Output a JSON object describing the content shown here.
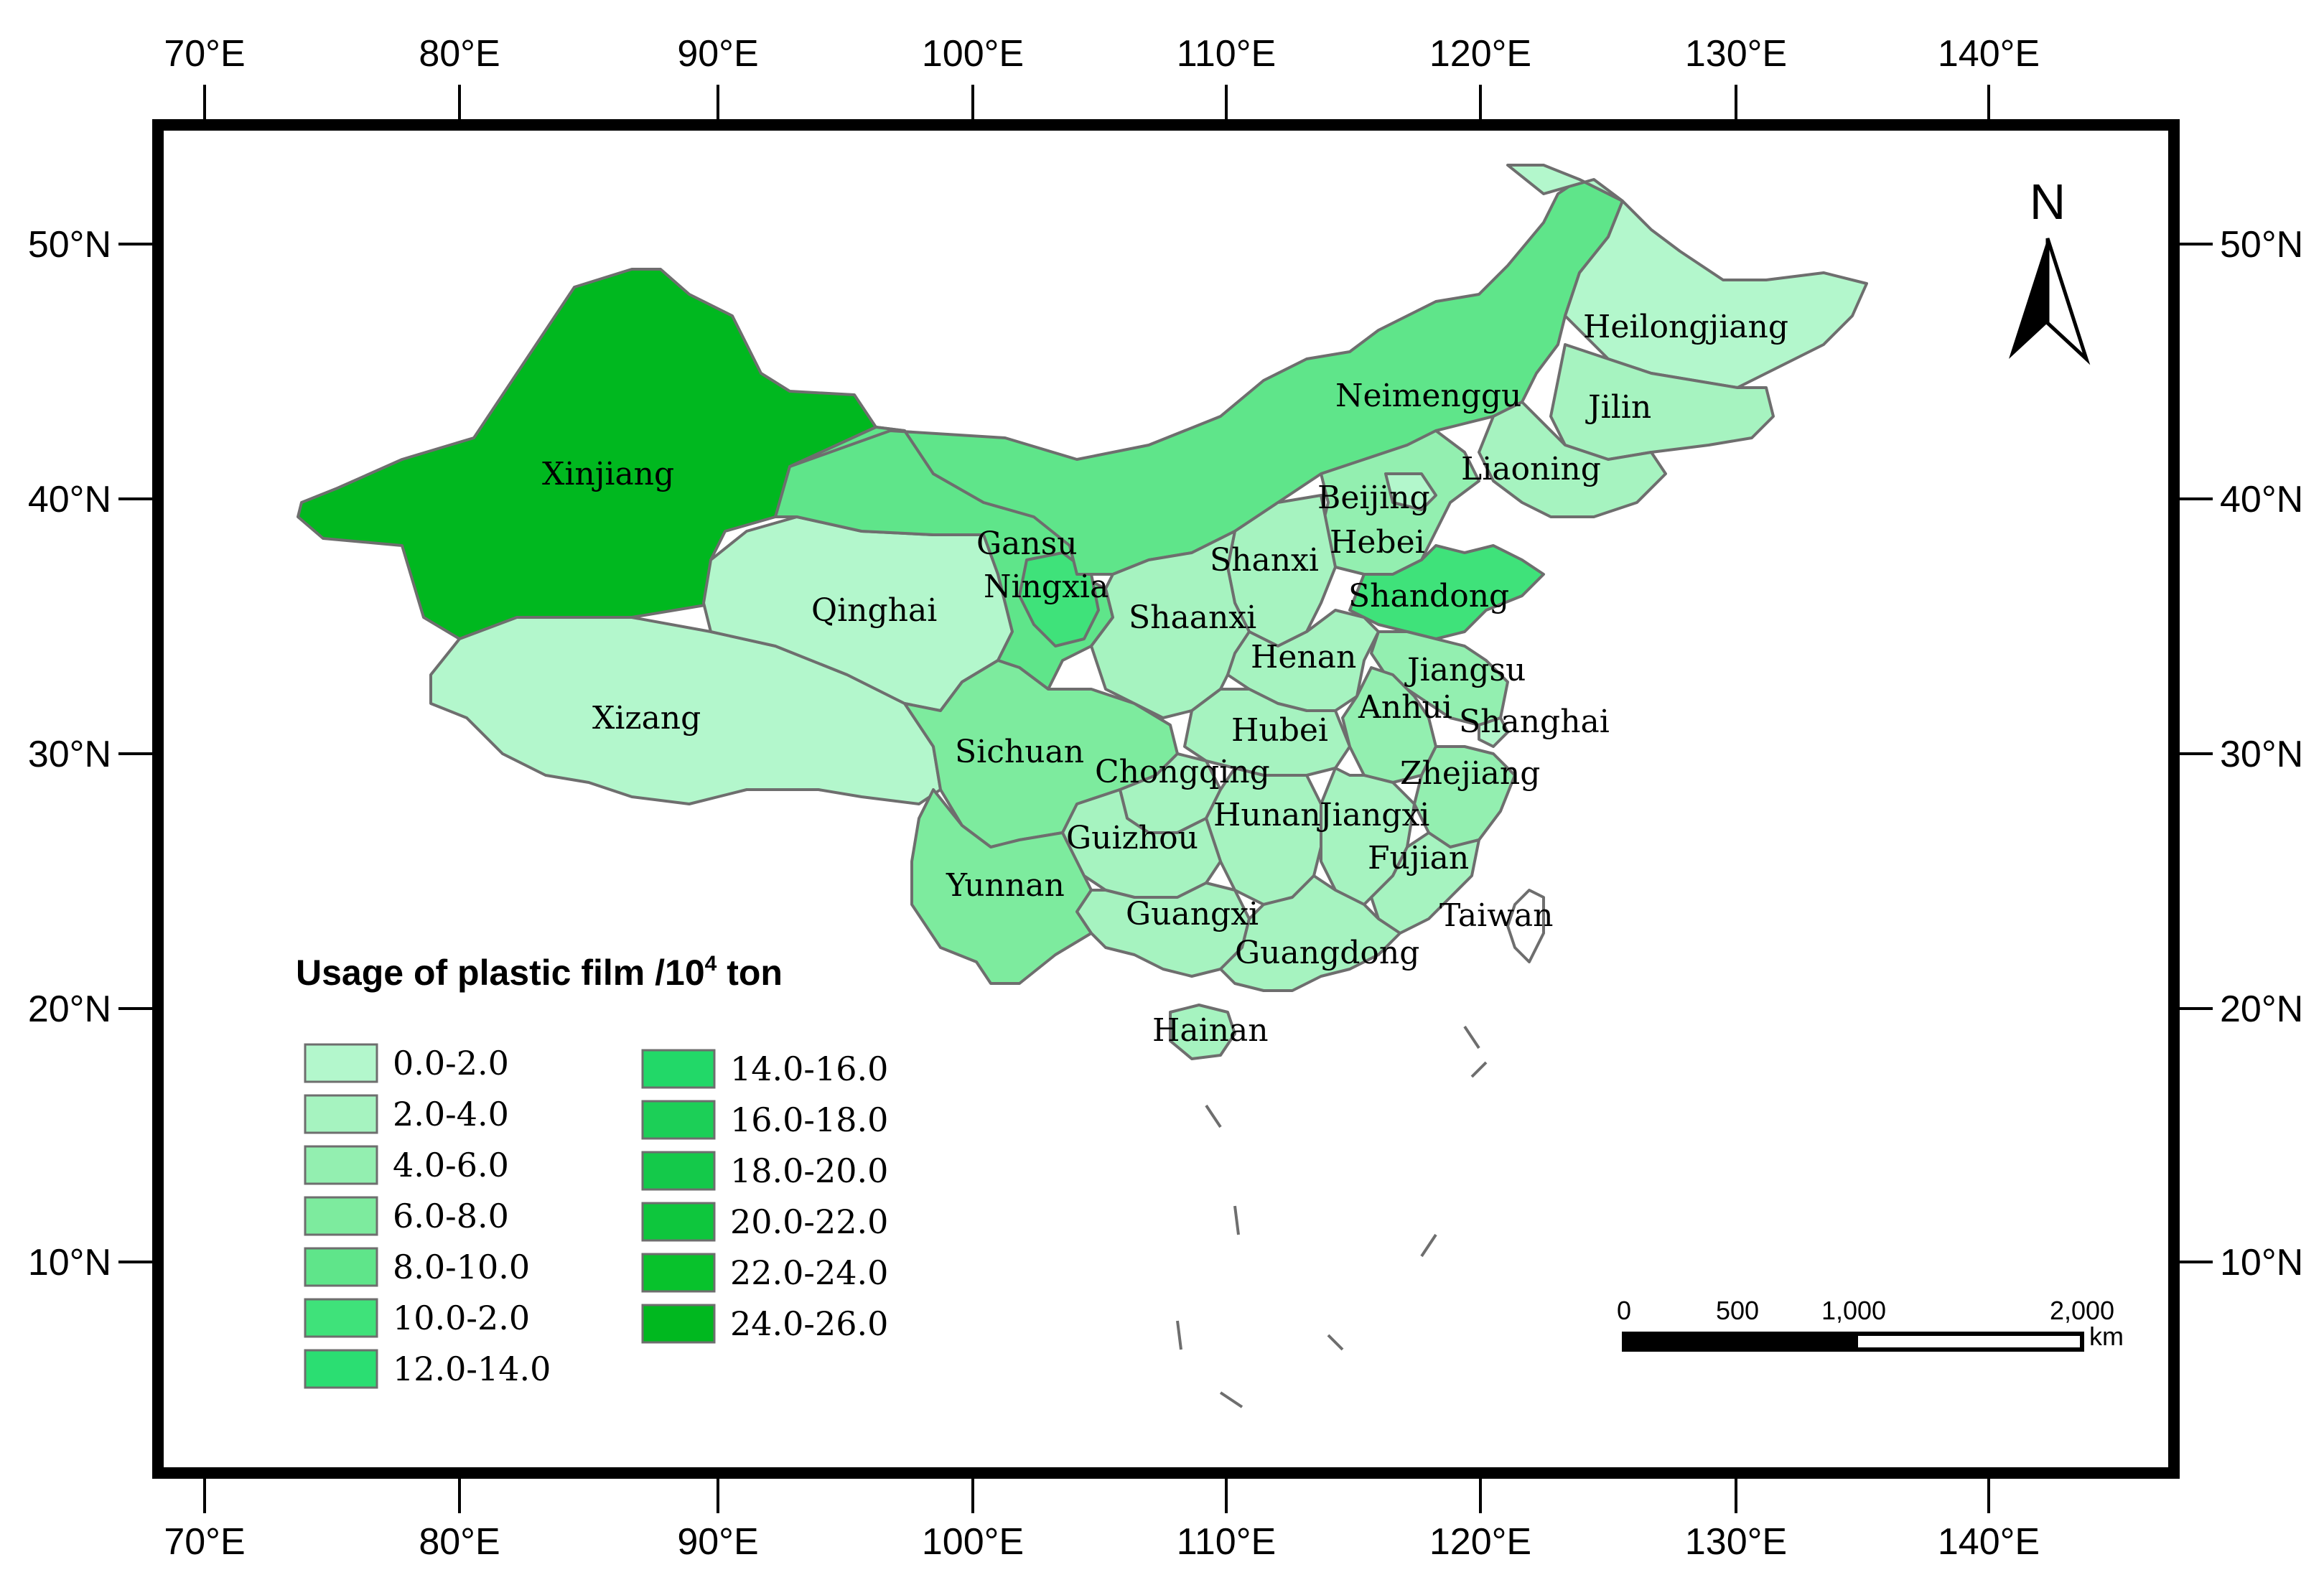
{
  "axes": {
    "lon_ticks": [
      "70°E",
      "80°E",
      "90°E",
      "100°E",
      "110°E",
      "120°E",
      "130°E",
      "140°E"
    ],
    "lat_ticks": [
      "50°N",
      "40°N",
      "30°N",
      "20°N",
      "10°N"
    ]
  },
  "legend": {
    "title_main": "Usage of plastic  film /10",
    "title_sup": "4",
    "title_unit": " ton",
    "classes": [
      {
        "label": "0.0-2.0",
        "color": "#b3f7cc"
      },
      {
        "label": "2.0-4.0",
        "color": "#a6f3c0"
      },
      {
        "label": "4.0-6.0",
        "color": "#93efb0"
      },
      {
        "label": "6.0-8.0",
        "color": "#7deb9e"
      },
      {
        "label": "8.0-10.0",
        "color": "#5fe58a"
      },
      {
        "label": "10.0-2.0",
        "color": "#3fe27a"
      },
      {
        "label": "12.0-14.0",
        "color": "#2bde72"
      },
      {
        "label": "14.0-16.0",
        "color": "#22d868"
      },
      {
        "label": "16.0-18.0",
        "color": "#1ccf57"
      },
      {
        "label": "18.0-20.0",
        "color": "#14c94a"
      },
      {
        "label": "20.0-22.0",
        "color": "#0ec63d"
      },
      {
        "label": "22.0-24.0",
        "color": "#08c22c"
      },
      {
        "label": "24.0-26.0",
        "color": "#00b81f"
      }
    ]
  },
  "provinces": [
    {
      "name": "Xinjiang"
    },
    {
      "name": "Qinghai"
    },
    {
      "name": "Xizang"
    },
    {
      "name": "Gansu"
    },
    {
      "name": "Ningxia"
    },
    {
      "name": "Sichuan"
    },
    {
      "name": "Yunnan"
    },
    {
      "name": "Neimenggu"
    },
    {
      "name": "Heilongjiang"
    },
    {
      "name": "Jilin"
    },
    {
      "name": "Liaoning"
    },
    {
      "name": "Beijing"
    },
    {
      "name": "Hebei"
    },
    {
      "name": "Shanxi"
    },
    {
      "name": "Shaanxi"
    },
    {
      "name": "Shandong"
    },
    {
      "name": "Henan"
    },
    {
      "name": "Jiangsu"
    },
    {
      "name": "Anhui"
    },
    {
      "name": "Shanghai"
    },
    {
      "name": "Hubei"
    },
    {
      "name": "Chongqing"
    },
    {
      "name": "Zhejiang"
    },
    {
      "name": "Hunan"
    },
    {
      "name": "Jiangxi"
    },
    {
      "name": "Guizhou"
    },
    {
      "name": "Fujian"
    },
    {
      "name": "Guangxi"
    },
    {
      "name": "Taiwan"
    },
    {
      "name": "Guangdong"
    },
    {
      "name": "Hainan"
    }
  ],
  "scale_bar": {
    "labels": [
      "0",
      "500",
      "1,000",
      "2,000"
    ],
    "unit": "km"
  },
  "north_arrow": {
    "label": "N",
    "icon": "north-arrow-icon"
  }
}
